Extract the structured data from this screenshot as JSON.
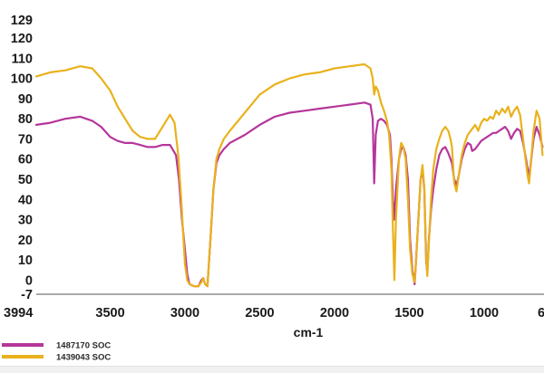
{
  "chart_data": {
    "type": "line",
    "title": "",
    "xlabel": "cm-1",
    "ylabel": "",
    "xlim": [
      3994,
      600
    ],
    "ylim": [
      -7,
      129
    ],
    "grid": false,
    "legend_position": "bottom-left",
    "x_ticks": [
      "3994",
      "3500",
      "3000",
      "2500",
      "2000",
      "1500",
      "1000",
      "6"
    ],
    "y_ticks": [
      "129",
      "120",
      "110",
      "100",
      "90",
      "80",
      "70",
      "60",
      "50",
      "40",
      "30",
      "20",
      "10",
      "0",
      "-7"
    ],
    "series": [
      {
        "name": "1487170 SOC",
        "color": "#b5369b",
        "points": [
          [
            3994,
            77
          ],
          [
            3900,
            78
          ],
          [
            3800,
            80
          ],
          [
            3700,
            81
          ],
          [
            3620,
            79
          ],
          [
            3560,
            76
          ],
          [
            3500,
            71
          ],
          [
            3450,
            69
          ],
          [
            3400,
            68
          ],
          [
            3350,
            68
          ],
          [
            3300,
            67
          ],
          [
            3250,
            66
          ],
          [
            3200,
            66
          ],
          [
            3150,
            67
          ],
          [
            3100,
            67
          ],
          [
            3060,
            62
          ],
          [
            3040,
            50
          ],
          [
            3020,
            30
          ],
          [
            3000,
            15
          ],
          [
            2985,
            3
          ],
          [
            2970,
            -2
          ],
          [
            2940,
            -3
          ],
          [
            2910,
            -3
          ],
          [
            2890,
            0
          ],
          [
            2878,
            1
          ],
          [
            2865,
            -2
          ],
          [
            2850,
            -3
          ],
          [
            2830,
            20
          ],
          [
            2810,
            45
          ],
          [
            2790,
            58
          ],
          [
            2770,
            62
          ],
          [
            2740,
            65
          ],
          [
            2700,
            68
          ],
          [
            2600,
            72
          ],
          [
            2500,
            77
          ],
          [
            2400,
            81
          ],
          [
            2300,
            83
          ],
          [
            2200,
            84
          ],
          [
            2100,
            85
          ],
          [
            2000,
            86
          ],
          [
            1900,
            87
          ],
          [
            1800,
            88
          ],
          [
            1760,
            87
          ],
          [
            1745,
            80
          ],
          [
            1735,
            48
          ],
          [
            1725,
            72
          ],
          [
            1710,
            79
          ],
          [
            1690,
            80
          ],
          [
            1670,
            79
          ],
          [
            1650,
            77
          ],
          [
            1630,
            72
          ],
          [
            1620,
            60
          ],
          [
            1610,
            40
          ],
          [
            1600,
            30
          ],
          [
            1590,
            45
          ],
          [
            1570,
            60
          ],
          [
            1555,
            65
          ],
          [
            1540,
            66
          ],
          [
            1525,
            62
          ],
          [
            1510,
            50
          ],
          [
            1495,
            20
          ],
          [
            1480,
            5
          ],
          [
            1465,
            -2
          ],
          [
            1455,
            10
          ],
          [
            1440,
            30
          ],
          [
            1425,
            50
          ],
          [
            1412,
            55
          ],
          [
            1400,
            45
          ],
          [
            1388,
            10
          ],
          [
            1380,
            3
          ],
          [
            1370,
            20
          ],
          [
            1355,
            35
          ],
          [
            1340,
            45
          ],
          [
            1320,
            55
          ],
          [
            1300,
            62
          ],
          [
            1280,
            65
          ],
          [
            1260,
            66
          ],
          [
            1240,
            63
          ],
          [
            1225,
            60
          ],
          [
            1215,
            58
          ],
          [
            1200,
            50
          ],
          [
            1185,
            47
          ],
          [
            1170,
            52
          ],
          [
            1150,
            60
          ],
          [
            1130,
            65
          ],
          [
            1110,
            68
          ],
          [
            1090,
            67
          ],
          [
            1080,
            64
          ],
          [
            1060,
            65
          ],
          [
            1040,
            67
          ],
          [
            1020,
            69
          ],
          [
            1000,
            70
          ],
          [
            980,
            71
          ],
          [
            960,
            72
          ],
          [
            940,
            73
          ],
          [
            920,
            73
          ],
          [
            900,
            74
          ],
          [
            880,
            75
          ],
          [
            860,
            76
          ],
          [
            840,
            74
          ],
          [
            820,
            70
          ],
          [
            800,
            73
          ],
          [
            780,
            75
          ],
          [
            760,
            74
          ],
          [
            740,
            68
          ],
          [
            720,
            60
          ],
          [
            710,
            55
          ],
          [
            700,
            52
          ],
          [
            690,
            57
          ],
          [
            670,
            70
          ],
          [
            650,
            76
          ],
          [
            630,
            72
          ],
          [
            610,
            66
          ]
        ]
      },
      {
        "name": "1439043 SOC",
        "color": "#e9b21c",
        "points": [
          [
            3994,
            101
          ],
          [
            3900,
            103
          ],
          [
            3800,
            104
          ],
          [
            3700,
            106
          ],
          [
            3620,
            105
          ],
          [
            3560,
            100
          ],
          [
            3500,
            94
          ],
          [
            3450,
            86
          ],
          [
            3400,
            80
          ],
          [
            3350,
            74
          ],
          [
            3300,
            71
          ],
          [
            3250,
            70
          ],
          [
            3200,
            70
          ],
          [
            3150,
            76
          ],
          [
            3100,
            82
          ],
          [
            3070,
            78
          ],
          [
            3045,
            62
          ],
          [
            3025,
            40
          ],
          [
            3010,
            20
          ],
          [
            3000,
            8
          ],
          [
            2985,
            0
          ],
          [
            2970,
            -2
          ],
          [
            2940,
            -3
          ],
          [
            2910,
            -3
          ],
          [
            2890,
            -1
          ],
          [
            2878,
            1
          ],
          [
            2865,
            -2
          ],
          [
            2850,
            -3
          ],
          [
            2830,
            20
          ],
          [
            2810,
            45
          ],
          [
            2790,
            60
          ],
          [
            2770,
            65
          ],
          [
            2740,
            70
          ],
          [
            2700,
            74
          ],
          [
            2600,
            83
          ],
          [
            2500,
            92
          ],
          [
            2400,
            97
          ],
          [
            2300,
            100
          ],
          [
            2200,
            102
          ],
          [
            2100,
            103
          ],
          [
            2000,
            105
          ],
          [
            1900,
            106
          ],
          [
            1800,
            107
          ],
          [
            1760,
            105
          ],
          [
            1745,
            100
          ],
          [
            1735,
            92
          ],
          [
            1725,
            96
          ],
          [
            1710,
            94
          ],
          [
            1690,
            88
          ],
          [
            1670,
            84
          ],
          [
            1650,
            79
          ],
          [
            1635,
            72
          ],
          [
            1620,
            55
          ],
          [
            1610,
            25
          ],
          [
            1600,
            0
          ],
          [
            1590,
            30
          ],
          [
            1570,
            60
          ],
          [
            1555,
            68
          ],
          [
            1540,
            66
          ],
          [
            1525,
            60
          ],
          [
            1510,
            40
          ],
          [
            1495,
            15
          ],
          [
            1480,
            3
          ],
          [
            1465,
            -1
          ],
          [
            1455,
            10
          ],
          [
            1440,
            30
          ],
          [
            1425,
            50
          ],
          [
            1412,
            57
          ],
          [
            1400,
            46
          ],
          [
            1388,
            12
          ],
          [
            1380,
            2
          ],
          [
            1370,
            18
          ],
          [
            1355,
            40
          ],
          [
            1340,
            55
          ],
          [
            1320,
            65
          ],
          [
            1300,
            70
          ],
          [
            1280,
            74
          ],
          [
            1260,
            76
          ],
          [
            1240,
            74
          ],
          [
            1225,
            70
          ],
          [
            1215,
            66
          ],
          [
            1200,
            48
          ],
          [
            1185,
            44
          ],
          [
            1170,
            52
          ],
          [
            1150,
            62
          ],
          [
            1130,
            68
          ],
          [
            1110,
            72
          ],
          [
            1090,
            74
          ],
          [
            1080,
            75
          ],
          [
            1060,
            77
          ],
          [
            1040,
            74
          ],
          [
            1020,
            78
          ],
          [
            1000,
            80
          ],
          [
            980,
            79
          ],
          [
            960,
            81
          ],
          [
            940,
            80
          ],
          [
            920,
            84
          ],
          [
            900,
            82
          ],
          [
            880,
            85
          ],
          [
            860,
            83
          ],
          [
            840,
            86
          ],
          [
            820,
            81
          ],
          [
            800,
            84
          ],
          [
            780,
            86
          ],
          [
            760,
            82
          ],
          [
            740,
            70
          ],
          [
            720,
            58
          ],
          [
            710,
            52
          ],
          [
            700,
            48
          ],
          [
            690,
            56
          ],
          [
            670,
            74
          ],
          [
            650,
            84
          ],
          [
            630,
            80
          ],
          [
            610,
            62
          ]
        ]
      }
    ]
  }
}
